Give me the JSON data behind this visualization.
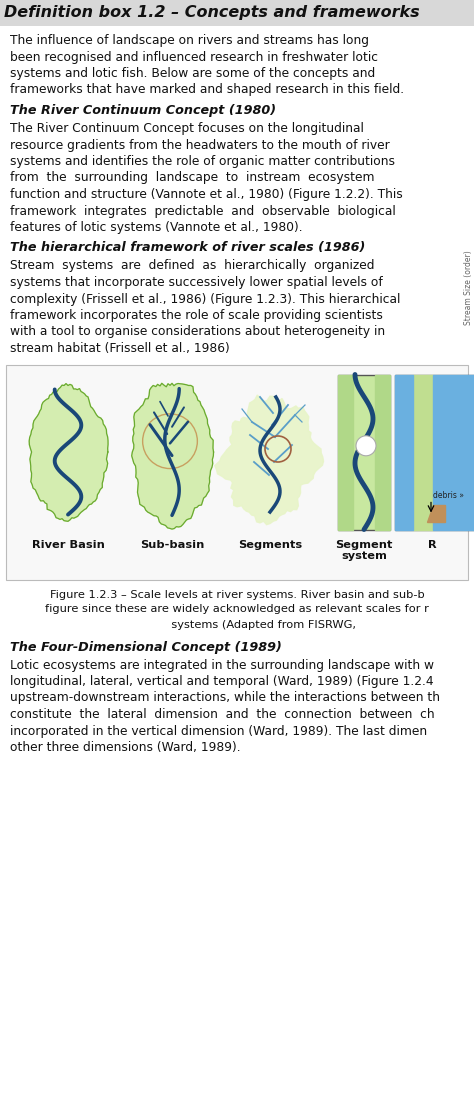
{
  "title": "Definition box 1.2 – Concepts and frameworks",
  "bg_color": "#ffffff",
  "header_bg": "#d8d8d8",
  "body_bg": "#ffffff",
  "text_color": "#111111",
  "para1_lines": [
    "The influence of landscape on rivers and streams has long",
    "been recognised and influenced research in freshwater lotic",
    "systems and lotic fish. Below are some of the concepts and",
    "frameworks that have marked and shaped research in this field."
  ],
  "heading1": "The River Continuum Concept (1980)",
  "para2_lines": [
    "The River Continuum Concept focuses on the longitudinal",
    "resource gradients from the headwaters to the mouth of river",
    "systems and identifies the role of organic matter contributions",
    "from  the  surrounding  landscape  to  instream  ecosystem",
    "function and structure (Vannote et al., 1980) (Figure 1.2.2). This",
    "framework  integrates  predictable  and  observable  biological",
    "features of lotic systems (Vannote et al., 1980)."
  ],
  "heading2": "The hierarchical framework of river scales (1986)",
  "para3_lines": [
    "Stream  systems  are  defined  as  hierarchically  organized",
    "systems that incorporate successively lower spatial levels of",
    "complexity (Frissell et al., 1986) (Figure 1.2.3). This hierarchical",
    "framework incorporates the role of scale providing scientists",
    "with a tool to organise considerations about heterogeneity in",
    "stream habitat (Frissell et al., 1986)"
  ],
  "fig_labels": [
    "River Basin",
    "Sub-basin",
    "Segments",
    "Segment\nsystem",
    "R"
  ],
  "fig_label_bold": [
    true,
    true,
    true,
    true,
    true
  ],
  "fig_caption_lines": [
    "Figure 1.2.3 – Scale levels at river systems. River basin and sub-b",
    "figure since these are widely acknowledged as relevant scales for r",
    "               systems (Adapted from FISRWG,"
  ],
  "heading3": "The Four-Dimensional Concept (1989)",
  "para4_lines": [
    "Lotic ecosystems are integrated in the surrounding landscape with w",
    "longitudinal, lateral, vertical and temporal (Ward, 1989) (Figure 1.2.4",
    "upstream-downstream interactions, while the interactions between th",
    "constitute  the  lateral  dimension  and  the  connection  between  ch",
    "incorporated in the vertical dimension (Ward, 1989). The last dimen",
    "other three dimensions (Ward, 1989)."
  ],
  "side_text": "Stream Size (order)",
  "green_light": "#d4edb0",
  "green_mid": "#b8dd88",
  "green_dark": "#6aaa30",
  "blue_dark": "#1a4878",
  "blue_light": "#5a9ec8",
  "blue_lighter": "#8ac4e0",
  "tan": "#c8a878",
  "white": "#ffffff",
  "fig_bg": "#ffffff",
  "rect_edge": "#666666"
}
